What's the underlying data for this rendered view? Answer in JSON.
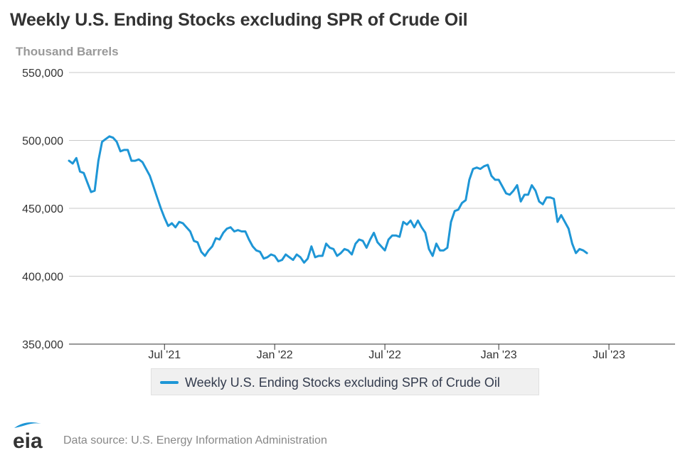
{
  "title": "Weekly U.S. Ending Stocks excluding SPR of Crude Oil",
  "units": "Thousand Barrels",
  "legend_label": "Weekly U.S. Ending Stocks excluding SPR of Crude Oil",
  "source": "Data source: U.S. Energy Information Administration",
  "logo_text": "eia",
  "colors": {
    "series": "#1e96d6",
    "grid": "#c8c8c8",
    "text": "#333333"
  },
  "chart_data": {
    "type": "line",
    "title": "Weekly U.S. Ending Stocks excluding SPR of Crude Oil",
    "ylabel": "Thousand Barrels",
    "ylim": [
      350000,
      550000
    ],
    "yticks": [
      350000,
      400000,
      450000,
      500000,
      550000
    ],
    "ytick_labels": [
      "350,000",
      "400,000",
      "450,000",
      "500,000",
      "550,000"
    ],
    "x_start_week": -26,
    "x_end_week": 139,
    "xticks": [
      {
        "week": 0,
        "label": "Jul '21"
      },
      {
        "week": 30,
        "label": "Jan '22"
      },
      {
        "week": 60,
        "label": "Jul '22"
      },
      {
        "week": 91,
        "label": "Jan '23"
      },
      {
        "week": 121,
        "label": "Jul '23"
      }
    ],
    "series": [
      {
        "name": "Weekly U.S. Ending Stocks excluding SPR of Crude Oil",
        "values": [
          485000,
          483000,
          487000,
          477000,
          476000,
          469000,
          462000,
          463000,
          485000,
          499000,
          501000,
          503000,
          502000,
          499000,
          492000,
          493000,
          493000,
          485000,
          485000,
          486000,
          484000,
          479000,
          474000,
          466000,
          458000,
          450000,
          443000,
          437000,
          439000,
          436000,
          440000,
          439000,
          436000,
          433000,
          426000,
          425000,
          418000,
          415000,
          419000,
          422000,
          428000,
          427000,
          432000,
          435000,
          436000,
          433000,
          434000,
          433000,
          433000,
          427000,
          422000,
          419000,
          418000,
          413000,
          414000,
          416000,
          415000,
          411000,
          412000,
          416000,
          414000,
          412000,
          416000,
          414000,
          410000,
          413000,
          422000,
          414000,
          415000,
          415000,
          424000,
          421000,
          420000,
          415000,
          417000,
          420000,
          419000,
          416000,
          424000,
          427000,
          426000,
          421000,
          427000,
          432000,
          425000,
          422000,
          419000,
          427000,
          430000,
          430000,
          429000,
          440000,
          438000,
          441000,
          436000,
          441000,
          436000,
          432000,
          420000,
          415000,
          424000,
          419000,
          419000,
          421000,
          440000,
          448000,
          449000,
          454000,
          456000,
          471000,
          479000,
          480000,
          479000,
          481000,
          482000,
          474000,
          471000,
          471000,
          466000,
          461000,
          460000,
          463000,
          467000,
          455000,
          460000,
          460000,
          467000,
          463000,
          455000,
          453000,
          458000,
          458000,
          457000,
          440000,
          445000,
          440000,
          435000,
          424000,
          417000,
          420000,
          419000,
          417000
        ]
      }
    ]
  }
}
